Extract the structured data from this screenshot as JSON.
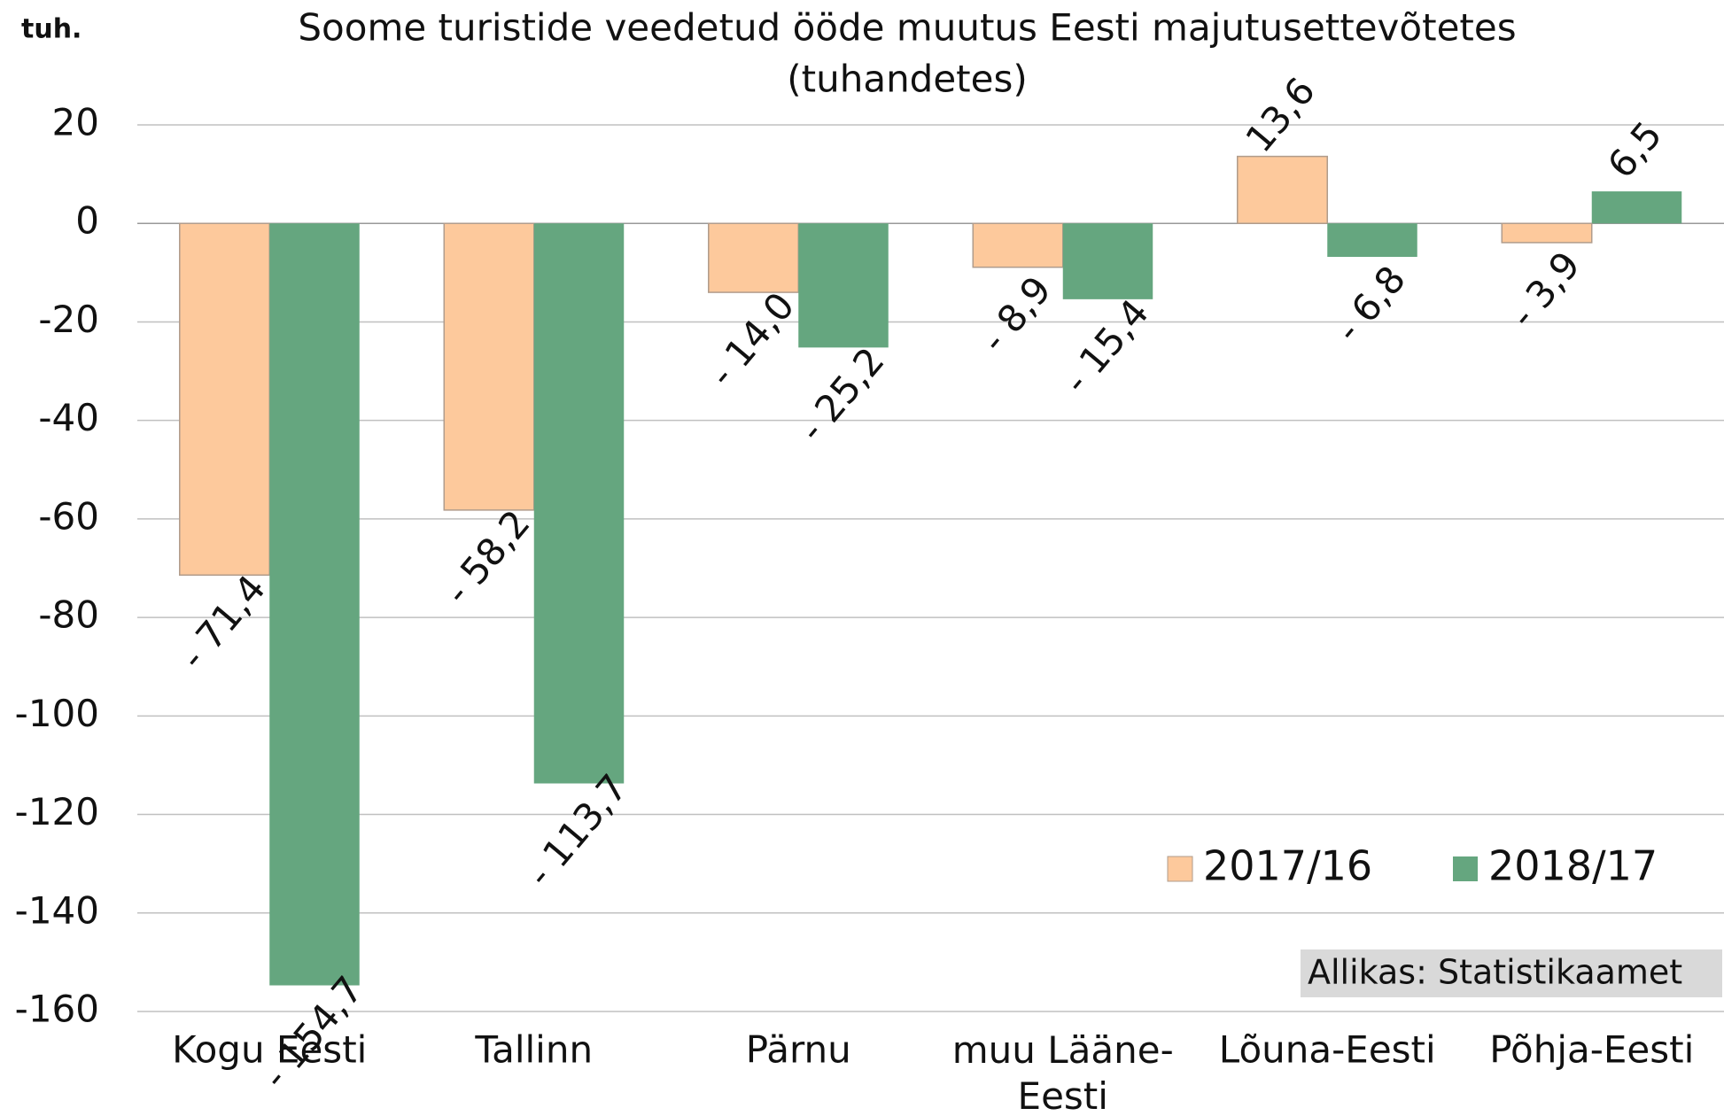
{
  "chart_data": {
    "type": "bar",
    "title": "Soome turistide veedetud ööde muutus Eesti majutusettevõtetes",
    "subtitle": "(tuhandetes)",
    "y_axis_label": "tuh.",
    "source": "Allikas: Statistikaamet",
    "categories": [
      "Kogu Eesti",
      "Tallinn",
      "Pärnu",
      "muu Lääne-Eesti",
      "Lõuna-Eesti",
      "Põhja-Eesti"
    ],
    "series": [
      {
        "name": "2017/16",
        "color": "#fdc99c",
        "values": [
          -71.4,
          -58.2,
          -14.0,
          -8.9,
          13.6,
          -3.9
        ],
        "value_labels": [
          "- 71,4",
          "- 58,2",
          "- 14,0",
          "- 8,9",
          "13,6",
          "- 3,9"
        ]
      },
      {
        "name": "2018/17",
        "color": "#65a67f",
        "values": [
          -154.7,
          -113.7,
          -25.2,
          -15.4,
          -6.8,
          6.5
        ],
        "value_labels": [
          "- 154,7",
          "- 113,7",
          "- 25,2",
          "- 15,4",
          "- 6,8",
          "6,5"
        ]
      }
    ],
    "ylim": [
      -160,
      20
    ],
    "yticks": [
      20,
      0,
      -20,
      -40,
      -60,
      -80,
      -100,
      -120,
      -140,
      -160
    ],
    "grid": true,
    "legend": "lower right"
  }
}
